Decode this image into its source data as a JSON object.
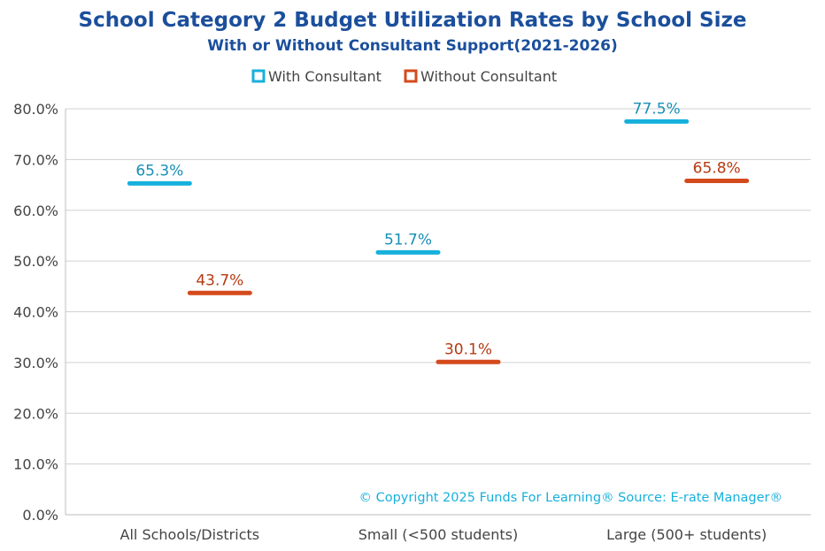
{
  "chart_data": {
    "type": "bar",
    "title": "School Category 2 Budget Utilization Rates by School Size",
    "subtitle": "With or Without Consultant Support(2021-2026)",
    "categories": [
      "All Schools/Districts",
      "Small (<500 students)",
      "Large (500+ students)"
    ],
    "series": [
      {
        "name": "With Consultant",
        "values": [
          65.3,
          51.7,
          77.5
        ],
        "labels": [
          "65.3%",
          "51.7%",
          "77.5%"
        ],
        "color": "#17b0dc",
        "label_color": "#178fb5"
      },
      {
        "name": "Without Consultant",
        "values": [
          43.7,
          30.1,
          65.8
        ],
        "labels": [
          "43.7%",
          "30.1%",
          "65.8%"
        ],
        "color": "#d44a1c",
        "label_color": "#b53a12"
      }
    ],
    "ylim": [
      0,
      80
    ],
    "yticks": [
      0,
      10,
      20,
      30,
      40,
      50,
      60,
      70,
      80
    ],
    "ytick_labels": [
      "0.0%",
      "10.0%",
      "20.0%",
      "30.0%",
      "40.0%",
      "50.0%",
      "60.0%",
      "70.0%",
      "80.0%"
    ],
    "grid": true,
    "legend_position": "top-center",
    "annotation": "© Copyright 2025 Funds For Learning® Source: E-rate Manager®",
    "annotation_color": "#17b0dc",
    "title_color": "#1b4f9c"
  }
}
